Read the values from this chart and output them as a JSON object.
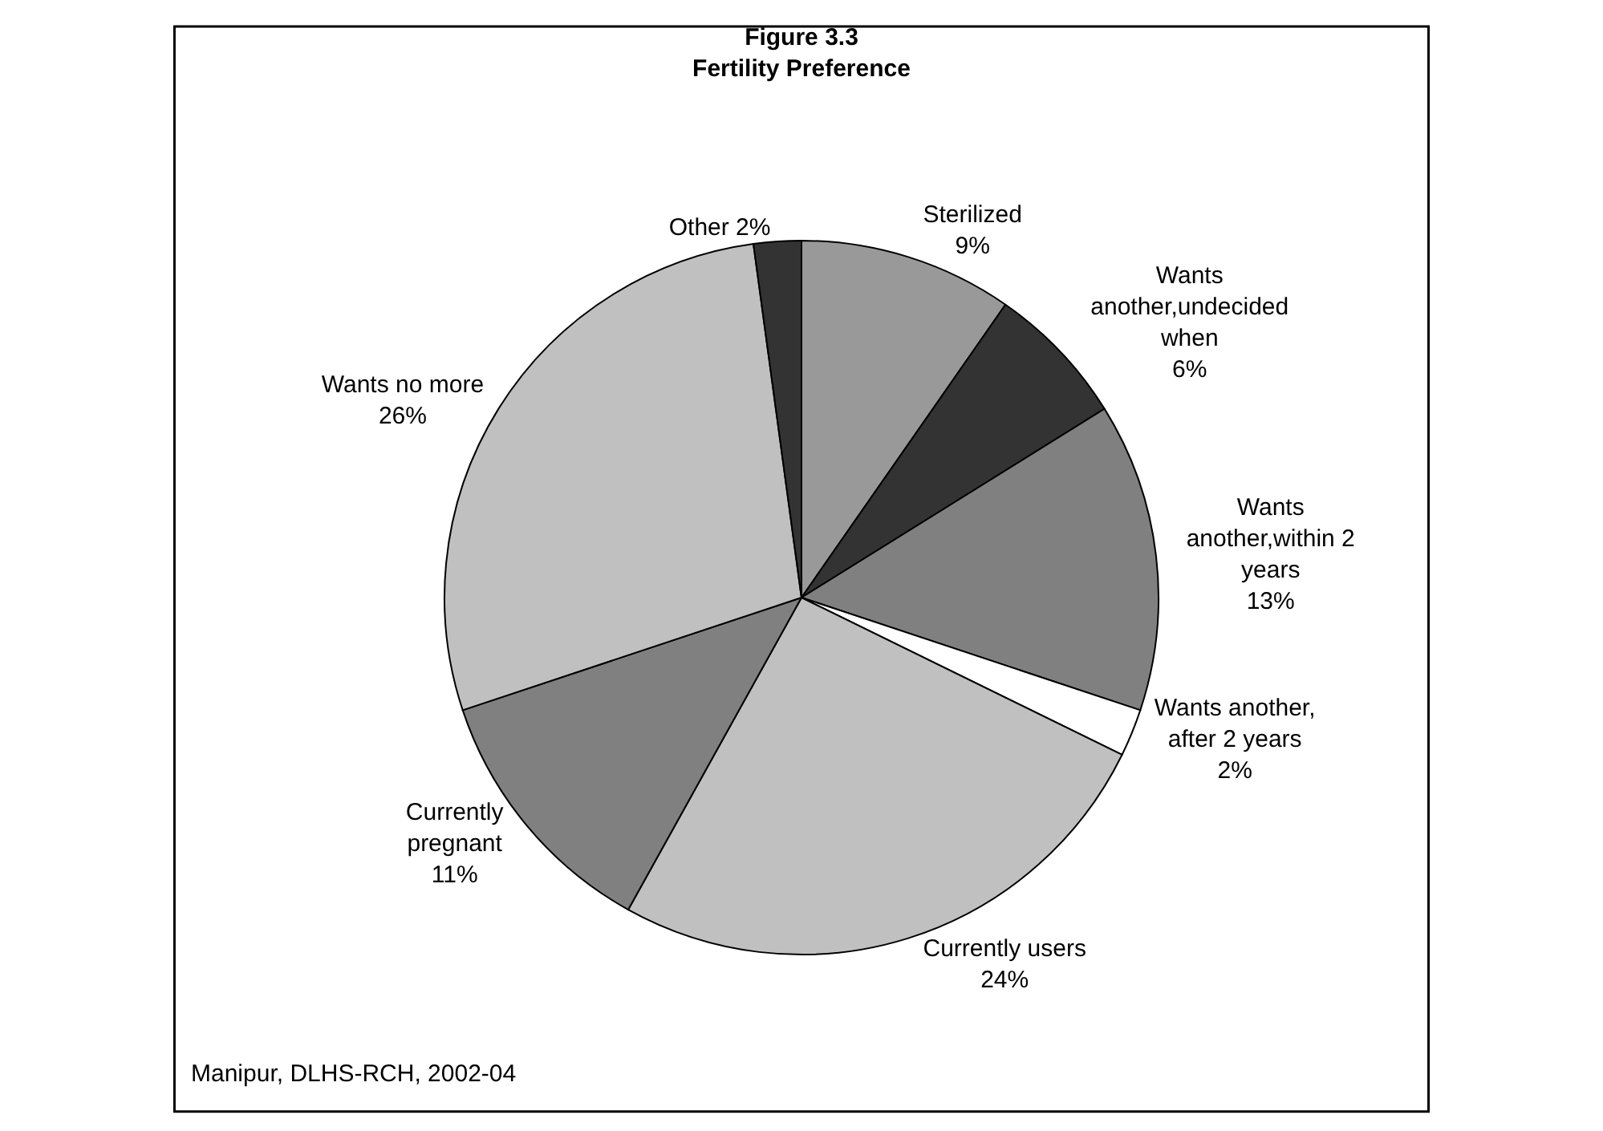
{
  "chart_data": {
    "type": "pie",
    "title": "Figure 3.3",
    "subtitle": "Fertility Preference",
    "categories": [
      "Sterilized",
      "Wants another,undecided when",
      "Wants another,within 2 years",
      "Wants another, after 2 years",
      "Currently users",
      "Currently pregnant",
      "Wants no more",
      "Other"
    ],
    "values": [
      9,
      6,
      13,
      2,
      24,
      11,
      26,
      2
    ],
    "value_labels": [
      "9%",
      "6%",
      "13%",
      "2%",
      "24%",
      "11%",
      "26%",
      "2%"
    ],
    "colors": [
      "#999999",
      "#333333",
      "#808080",
      "#ffffff",
      "#c0c0c0",
      "#808080",
      "#c0c0c0",
      "#333333"
    ],
    "annotations": [
      "Manipur, DLHS-RCH, 2002-04"
    ],
    "legend": false
  }
}
